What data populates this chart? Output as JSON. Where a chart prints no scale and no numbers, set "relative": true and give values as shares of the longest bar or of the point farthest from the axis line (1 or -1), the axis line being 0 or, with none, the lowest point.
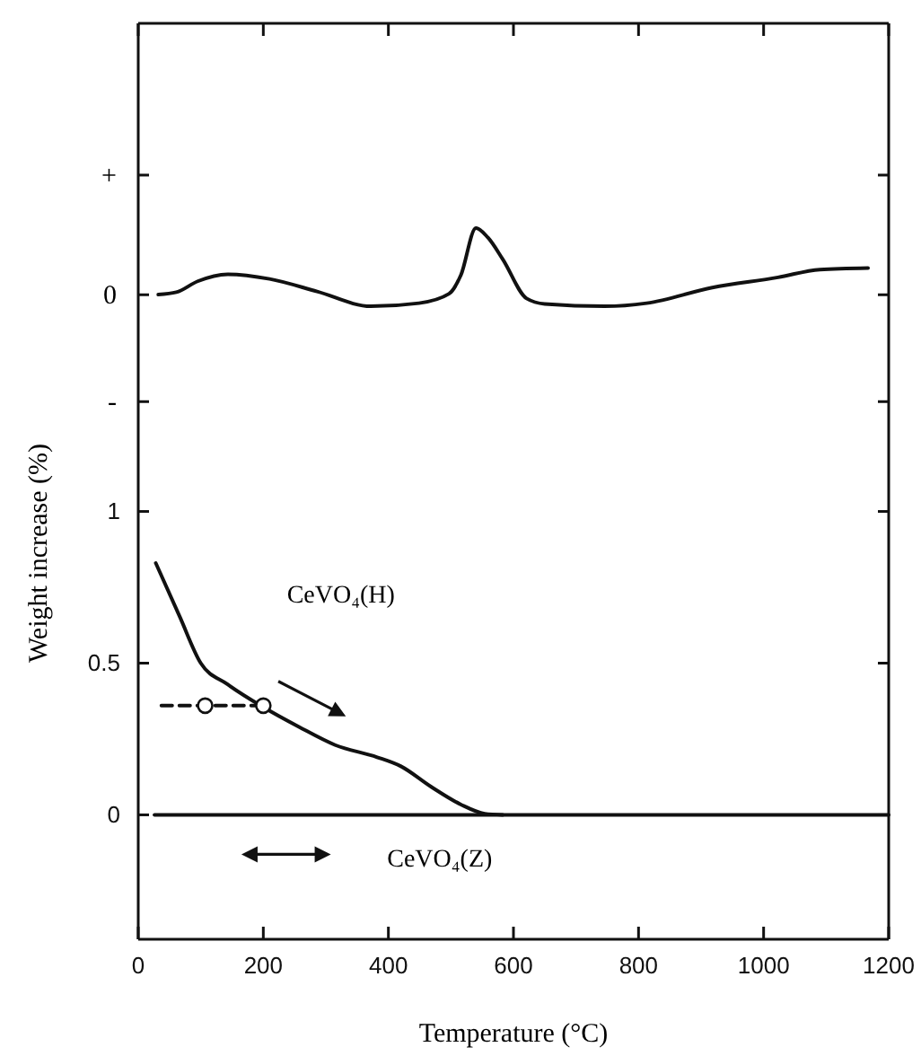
{
  "chart_data": [
    {
      "type": "line",
      "relative": true,
      "xlim": [
        0,
        1200
      ],
      "xticks": [
        0,
        200,
        400,
        600,
        800,
        1000,
        1200
      ],
      "tick_labels": false,
      "grid": false,
      "series": [
        {
          "color": "#111111",
          "x": [
            32,
            61,
            95,
            143,
            210,
            286,
            372,
            449,
            497,
            516,
            540,
            559,
            583,
            621,
            650,
            746,
            813,
            918,
            1023,
            1090,
            1167
          ],
          "values": [
            0.15,
            0.18,
            0.32,
            0.41,
            0.35,
            0.19,
            0,
            0.04,
            0.16,
            0.4,
            1,
            0.88,
            0.6,
            0.1,
            0.03,
            0,
            0.04,
            0.24,
            0.37,
            0.47,
            0.49
          ]
        }
      ],
      "annotations": [
        "+",
        "0",
        "-"
      ]
    },
    {
      "type": "line",
      "xlim": [
        0,
        1200
      ],
      "xticks": [
        0,
        200,
        400,
        600,
        800,
        1000,
        1200
      ],
      "ylim": [
        -0.41,
        1.2
      ],
      "yticks": [
        0,
        0.5,
        1
      ],
      "xlabel": "Temperature (°C)",
      "ylabel": "Weight increase (%)",
      "grid": false,
      "series": [
        {
          "color": "#111111",
          "x": [
            28,
            66,
            100,
            143,
            200,
            257,
            315,
            382,
            420,
            468,
            516,
            554,
            583
          ],
          "values": [
            0.83,
            0.655,
            0.5,
            0.43,
            0.355,
            0.29,
            0.23,
            0.19,
            0.16,
            0.093,
            0.034,
            0.004,
            0
          ]
        },
        {
          "color": "#111111",
          "x": [
            26,
            1200
          ],
          "values": [
            0,
            0
          ]
        },
        {
          "color": "#111111",
          "line_style": "dashed",
          "x": [
            37,
            200
          ],
          "values": [
            0.36,
            0.36
          ]
        },
        {
          "type": "scatter",
          "color": "#111111",
          "marker": "circle",
          "x": [
            107,
            200
          ],
          "values": [
            0.36,
            0.36
          ]
        }
      ],
      "annotations": [
        "CeVO₄(H)",
        "CeVO₄(Z)"
      ]
    }
  ]
}
